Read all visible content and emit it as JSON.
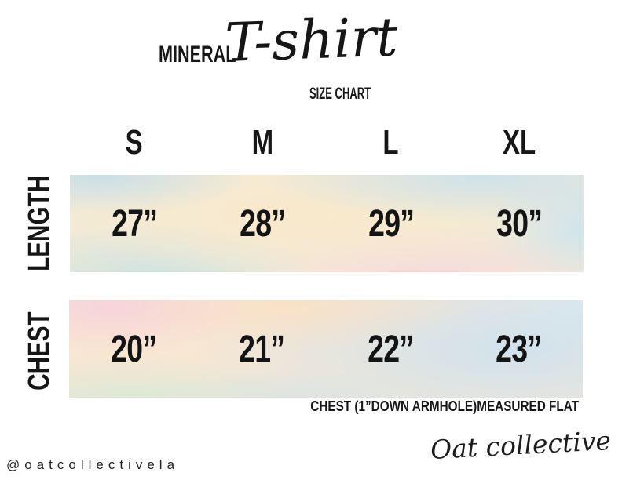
{
  "header": {
    "brand": "MINERAL",
    "script_title": "T-shirt",
    "subtitle": "SIZE CHART"
  },
  "chart_data": {
    "type": "table",
    "title": "MINERAL T-shirt SIZE CHART",
    "columns": [
      "S",
      "M",
      "L",
      "XL"
    ],
    "rows": [
      {
        "label": "LENGTH",
        "values": [
          "27”",
          "28”",
          "29”",
          "30”"
        ]
      },
      {
        "label": "CHEST",
        "values": [
          "20”",
          "21”",
          "22”",
          "23”"
        ]
      }
    ],
    "units": "inches"
  },
  "note": "CHEST (1”DOWN ARMHOLE)MEASURED FLAT",
  "footer": {
    "handle": "@oatcollectivela",
    "signature": "Oat collective"
  },
  "palette": {
    "ink": "#161616",
    "background": "#ffffff",
    "band_cream": "#f2ead6",
    "band_blue": "#cfe2ee",
    "band_peach": "#fbe3c9",
    "band_pink": "#f7d8de",
    "band_mint": "#d9e9dc"
  }
}
